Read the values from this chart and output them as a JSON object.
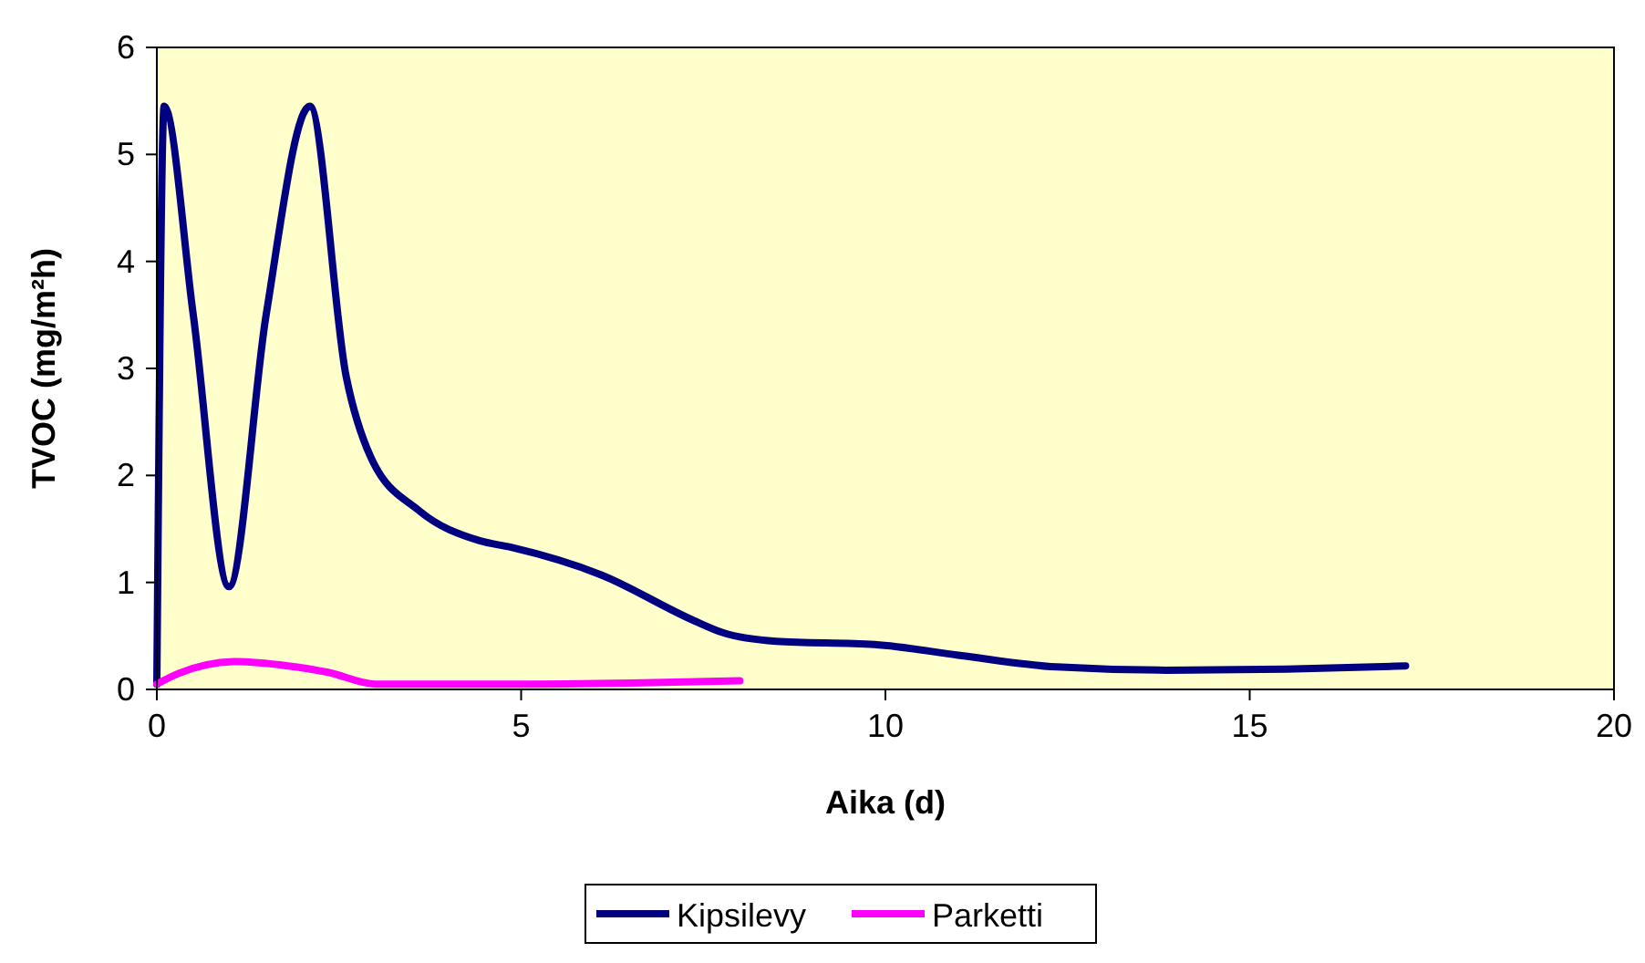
{
  "chart_data": {
    "type": "line",
    "xlabel": "Aika (d)",
    "ylabel": "TVOC (mg/m²h)",
    "xlim": [
      0,
      20
    ],
    "xticks": [
      0,
      5,
      10,
      15,
      20
    ],
    "ylim": [
      0,
      6
    ],
    "yticks": [
      0,
      1,
      2,
      3,
      4,
      5,
      6
    ],
    "grid": false,
    "legend": "bottom",
    "marker": "none",
    "line_style": "solid",
    "series": [
      {
        "name": "Kipsilevy",
        "color": "#000080",
        "x": [
          0,
          0.1,
          0.5,
          0.99,
          1.5,
          2.1,
          2.6,
          2.93,
          3.6,
          4.43,
          4.85,
          6.1,
          7.35,
          7.77,
          8.5,
          9.85,
          11,
          12.35,
          13.85,
          15.5,
          17.14
        ],
        "values": [
          0.05,
          5.45,
          3.5,
          0.96,
          3.5,
          5.45,
          2.92,
          2.18,
          1.67,
          1.39,
          1.33,
          1.07,
          0.65,
          0.53,
          0.45,
          0.42,
          0.32,
          0.21,
          0.18,
          0.19,
          0.22
        ]
      },
      {
        "name": "Parketti",
        "color": "#ff00ff",
        "x": [
          0,
          0.3,
          1.1,
          1.8,
          2.35,
          3.0,
          4.0,
          5.0,
          6.5,
          8.0
        ],
        "values": [
          0.05,
          0.15,
          0.26,
          0.22,
          0.16,
          0.05,
          0.05,
          0.05,
          0.06,
          0.08
        ]
      }
    ]
  }
}
